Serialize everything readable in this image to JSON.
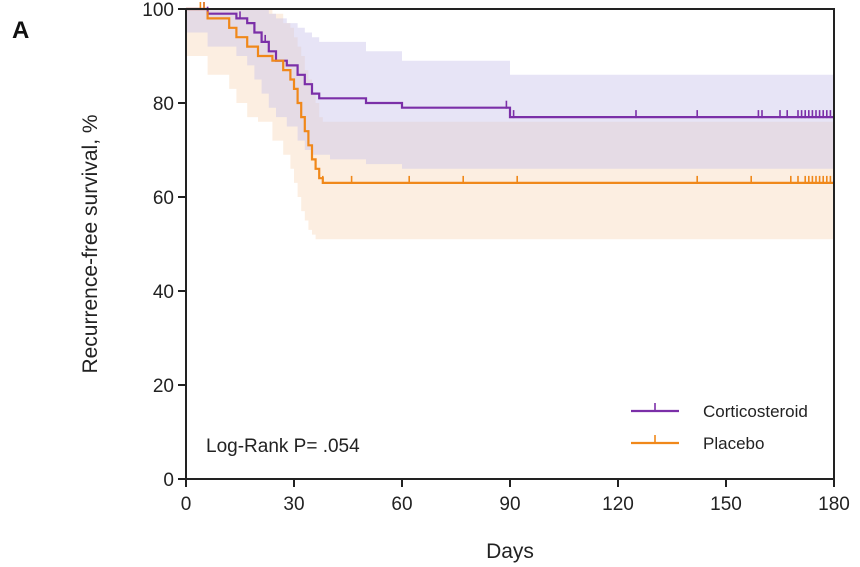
{
  "panel_label": "A",
  "chart_data": {
    "type": "line",
    "subtype": "kaplan-meier",
    "xlabel": "Days",
    "ylabel": "Recurrence-free survival, %",
    "xlim": [
      0,
      180
    ],
    "ylim": [
      0,
      100
    ],
    "x_ticks": [
      0,
      30,
      60,
      90,
      120,
      150,
      180
    ],
    "y_ticks": [
      0,
      20,
      40,
      60,
      80,
      100
    ],
    "grid": false,
    "legend_position": "bottom-right",
    "annotation": "Log-Rank P= .054",
    "series": [
      {
        "name": "Corticosteroid",
        "color": "#7b2fa8",
        "band_color": "#c9c3ea",
        "x": [
          0,
          6,
          14,
          17,
          19,
          21,
          23,
          25,
          28,
          31,
          33,
          35,
          37,
          40,
          50,
          60,
          90,
          180
        ],
        "y": [
          100,
          99,
          98,
          97,
          95,
          93,
          91,
          89,
          88,
          86,
          84,
          82,
          81,
          81,
          80,
          79,
          77,
          77
        ],
        "lower": [
          100,
          95,
          92,
          90,
          88,
          85,
          82,
          79,
          77,
          75,
          72,
          70,
          69,
          69,
          68,
          67,
          66,
          66
        ],
        "upper": [
          100,
          100,
          100,
          100,
          100,
          100,
          99,
          98,
          97,
          96,
          95,
          94,
          93,
          93,
          91,
          89,
          86,
          86
        ],
        "censor_x": [
          5,
          6,
          15,
          22,
          89,
          91,
          125,
          142,
          159,
          160,
          165,
          167,
          170,
          171,
          172,
          173,
          174,
          175,
          176,
          177,
          178,
          179
        ]
      },
      {
        "name": "Placebo",
        "color": "#f0881a",
        "band_color": "#f9d9bc",
        "x": [
          0,
          6,
          12,
          14,
          17,
          20,
          24,
          27,
          29,
          30,
          31,
          32,
          33,
          34,
          35,
          36,
          37,
          38,
          42,
          180
        ],
        "y": [
          100,
          98,
          96,
          94,
          92,
          90,
          89,
          87,
          85,
          83,
          80,
          77,
          74,
          71,
          68,
          66,
          64,
          63,
          63,
          63
        ],
        "lower": [
          100,
          90,
          86,
          83,
          80,
          77,
          76,
          72,
          69,
          66,
          63,
          60,
          57,
          55,
          53,
          52,
          51,
          51,
          51,
          51
        ],
        "upper": [
          100,
          100,
          100,
          100,
          100,
          100,
          99,
          97,
          96,
          94,
          92,
          90,
          87,
          85,
          82,
          80,
          77,
          76,
          76,
          76
        ],
        "censor_x": [
          4,
          5,
          6,
          12,
          38,
          46,
          62,
          77,
          92,
          142,
          157,
          168,
          170,
          172,
          173,
          174,
          175,
          176,
          177,
          178,
          179
        ]
      }
    ]
  }
}
